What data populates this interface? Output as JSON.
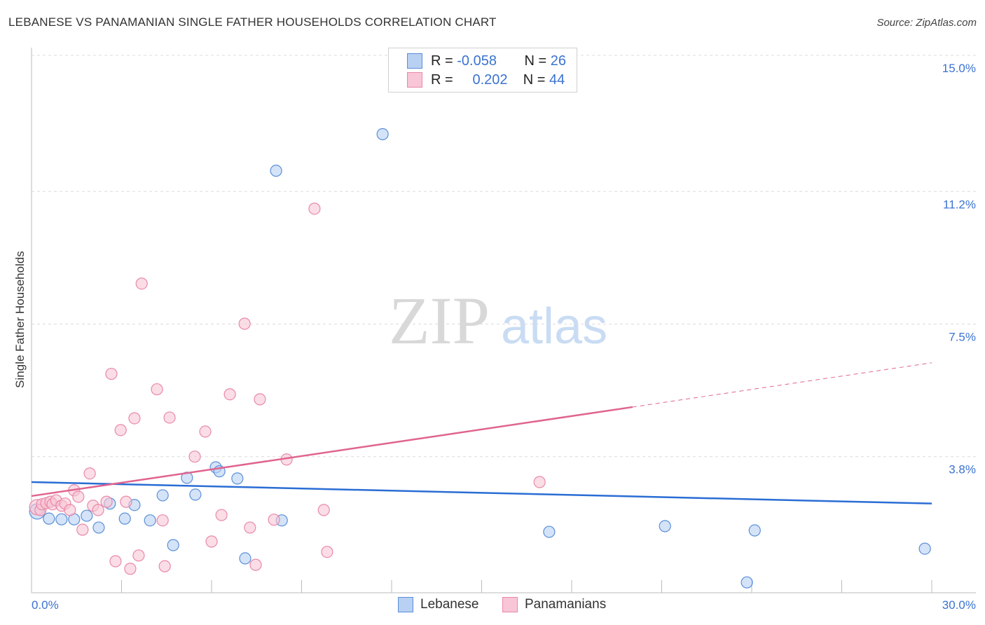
{
  "title": "LEBANESE VS PANAMANIAN SINGLE FATHER HOUSEHOLDS CORRELATION CHART",
  "source": "Source: ZipAtlas.com",
  "legend": {
    "rows": [
      {
        "r_label": "R =",
        "r": "-0.058",
        "n_label": "N =",
        "n": "26"
      },
      {
        "r_label": "R =",
        "r": "0.202",
        "n_label": "N =",
        "n": "44"
      }
    ]
  },
  "watermark": "ZIPatlas",
  "chart_data": {
    "type": "scatter",
    "title": "LEBANESE VS PANAMANIAN SINGLE FATHER HOUSEHOLDS CORRELATION CHART",
    "xlabel": "",
    "ylabel": "Single Father Households",
    "xlim": [
      0,
      30
    ],
    "ylim": [
      0,
      15
    ],
    "x_tick_labels": [
      "0.0%",
      "30.0%"
    ],
    "y_ticks": [
      3.8,
      7.5,
      11.2,
      15.0
    ],
    "y_tick_labels": [
      "3.8%",
      "7.5%",
      "11.2%",
      "15.0%"
    ],
    "grid": true,
    "legend_position": "bottom",
    "series": [
      {
        "name": "Lebanese",
        "color": "#5b8fd9",
        "fill": "#b8d0f2",
        "line_color": "#2a6dd4",
        "r": -0.058,
        "n": 26,
        "trend": {
          "x": [
            0,
            30
          ],
          "y": [
            3.09,
            2.49
          ]
        },
        "points": [
          [
            0.19,
            2.27
          ],
          [
            0.58,
            2.07
          ],
          [
            1.0,
            2.05
          ],
          [
            1.42,
            2.05
          ],
          [
            1.84,
            2.15
          ],
          [
            2.24,
            1.82
          ],
          [
            2.61,
            2.49
          ],
          [
            3.11,
            2.07
          ],
          [
            3.43,
            2.45
          ],
          [
            3.95,
            2.02
          ],
          [
            4.37,
            2.72
          ],
          [
            4.72,
            1.33
          ],
          [
            5.18,
            3.21
          ],
          [
            5.46,
            2.74
          ],
          [
            6.14,
            3.5
          ],
          [
            6.26,
            3.39
          ],
          [
            6.86,
            3.19
          ],
          [
            7.12,
            0.96
          ],
          [
            8.15,
            11.78
          ],
          [
            8.34,
            2.02
          ],
          [
            11.7,
            12.8
          ],
          [
            17.25,
            1.7
          ],
          [
            21.11,
            1.86
          ],
          [
            24.1,
            1.74
          ],
          [
            23.84,
            0.29
          ],
          [
            29.77,
            1.23
          ]
        ]
      },
      {
        "name": "Panamanians",
        "color": "#e889a8",
        "fill": "#f8c6d6",
        "line_color": "#e0648f",
        "r": 0.202,
        "n": 44,
        "trend": {
          "x": [
            0,
            30
          ],
          "y": [
            2.7,
            6.42
          ],
          "solid_until": 20.03
        },
        "points": [
          [
            0.19,
            2.39
          ],
          [
            0.3,
            2.31
          ],
          [
            0.35,
            2.47
          ],
          [
            0.49,
            2.5
          ],
          [
            0.63,
            2.54
          ],
          [
            0.7,
            2.47
          ],
          [
            0.82,
            2.58
          ],
          [
            1.0,
            2.43
          ],
          [
            1.12,
            2.49
          ],
          [
            1.28,
            2.31
          ],
          [
            1.42,
            2.86
          ],
          [
            1.56,
            2.68
          ],
          [
            1.7,
            1.76
          ],
          [
            1.94,
            3.33
          ],
          [
            2.05,
            2.43
          ],
          [
            2.22,
            2.31
          ],
          [
            2.5,
            2.54
          ],
          [
            2.66,
            6.11
          ],
          [
            2.8,
            0.88
          ],
          [
            2.97,
            4.54
          ],
          [
            3.15,
            2.54
          ],
          [
            3.29,
            0.67
          ],
          [
            3.43,
            4.87
          ],
          [
            3.57,
            1.04
          ],
          [
            3.67,
            8.63
          ],
          [
            4.18,
            5.68
          ],
          [
            4.37,
            2.02
          ],
          [
            4.44,
            0.74
          ],
          [
            4.6,
            4.89
          ],
          [
            5.44,
            3.8
          ],
          [
            5.79,
            4.5
          ],
          [
            6.0,
            1.43
          ],
          [
            6.33,
            2.17
          ],
          [
            6.61,
            5.54
          ],
          [
            7.1,
            7.51
          ],
          [
            7.28,
            1.82
          ],
          [
            7.47,
            0.78
          ],
          [
            7.61,
            5.4
          ],
          [
            8.08,
            2.04
          ],
          [
            8.5,
            3.72
          ],
          [
            9.43,
            10.72
          ],
          [
            9.74,
            2.31
          ],
          [
            9.85,
            1.14
          ],
          [
            16.93,
            3.09
          ]
        ]
      }
    ]
  }
}
